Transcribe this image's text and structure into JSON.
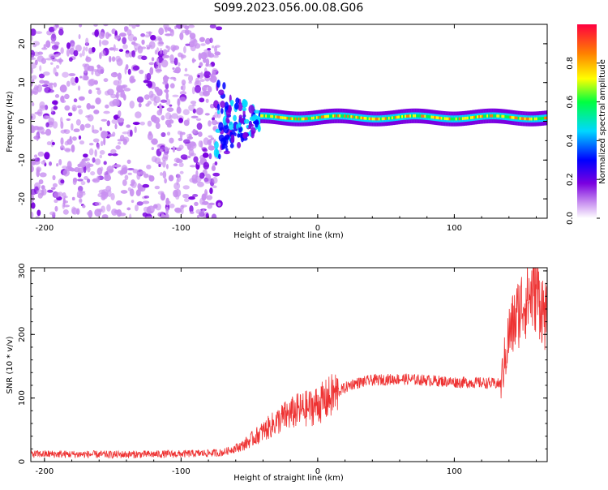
{
  "title": "S099.2023.056.00.08.G06",
  "chart_data": [
    {
      "type": "heatmap",
      "xlabel": "Height of straight line (km)",
      "ylabel": "Frequency (Hz)",
      "xlim": [
        -210,
        168
      ],
      "ylim": [
        -25,
        25
      ],
      "x_ticks": [
        -200,
        -100,
        0,
        100
      ],
      "y_ticks": [
        -20,
        -10,
        0,
        10,
        20
      ],
      "colorbar": {
        "label": "Normalized spectral amplitude",
        "range": [
          0.0,
          1.0
        ],
        "ticks": [
          0.0,
          0.2,
          0.4,
          0.6,
          0.8
        ],
        "colors": [
          "#ffffff",
          "#c890f0",
          "#7a00e0",
          "#0000ff",
          "#00d8ff",
          "#00ff40",
          "#ffff00",
          "#ff8000",
          "#ff0040"
        ]
      },
      "regions": [
        {
          "description": "diffuse noise",
          "x_range": [
            -210,
            -72
          ],
          "freq_range": [
            -25,
            25
          ],
          "amplitude": "0.0-0.3"
        },
        {
          "description": "scattered carrier",
          "x_range": [
            -75,
            -42
          ],
          "freq_range": [
            -8,
            9
          ],
          "amplitude": "0.2-0.6"
        },
        {
          "description": "carrier line",
          "x_range": [
            -42,
            168
          ],
          "freq_center": 1.0,
          "freq_halfwidth": 1.5,
          "amplitude": "0.5-1.0"
        }
      ]
    },
    {
      "type": "line",
      "xlabel": "Height of straight line (km)",
      "ylabel": "SNR (10 * v/v)",
      "xlim": [
        -210,
        168
      ],
      "ylim": [
        0,
        305
      ],
      "x_ticks": [
        -200,
        -100,
        0,
        100
      ],
      "y_ticks": [
        0,
        100,
        200,
        300
      ],
      "color": "#ee3333",
      "series": [
        {
          "x": [
            -210,
            -150,
            -100,
            -70,
            -55,
            -45,
            -35,
            -25,
            -15,
            -5,
            5,
            15,
            25,
            40,
            60,
            80,
            100,
            120,
            134,
            140,
            150,
            160,
            168
          ],
          "values": [
            12,
            11,
            12,
            14,
            25,
            40,
            55,
            70,
            80,
            85,
            95,
            110,
            122,
            128,
            130,
            128,
            125,
            124,
            122,
            200,
            250,
            270,
            220
          ]
        }
      ]
    }
  ]
}
